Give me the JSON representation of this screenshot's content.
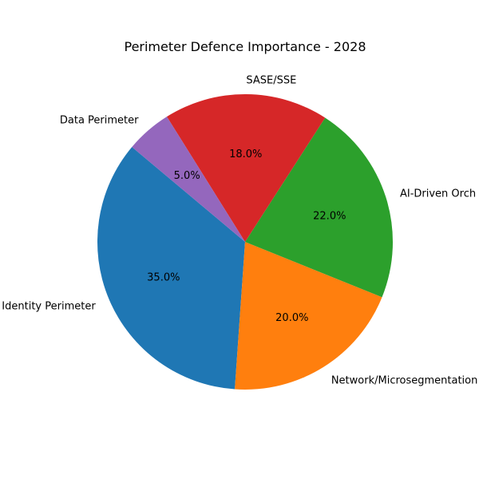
{
  "chart_data": {
    "type": "pie",
    "title": "Perimeter Defence Importance - 2028",
    "categories": [
      "Identity Perimeter",
      "Network/Microsegmentation",
      "AI-Driven Orch",
      "SASE/SSE",
      "Data Perimeter"
    ],
    "values": [
      35.0,
      20.0,
      22.0,
      18.0,
      5.0
    ],
    "pct_labels": [
      "35.0%",
      "20.0%",
      "22.0%",
      "18.0%",
      "5.0%"
    ],
    "colors": [
      "#1f77b4",
      "#ff7f0e",
      "#2ca02c",
      "#d62728",
      "#9467bd"
    ],
    "start_angle_deg": 140,
    "direction": "counterclockwise",
    "legend": "none"
  }
}
